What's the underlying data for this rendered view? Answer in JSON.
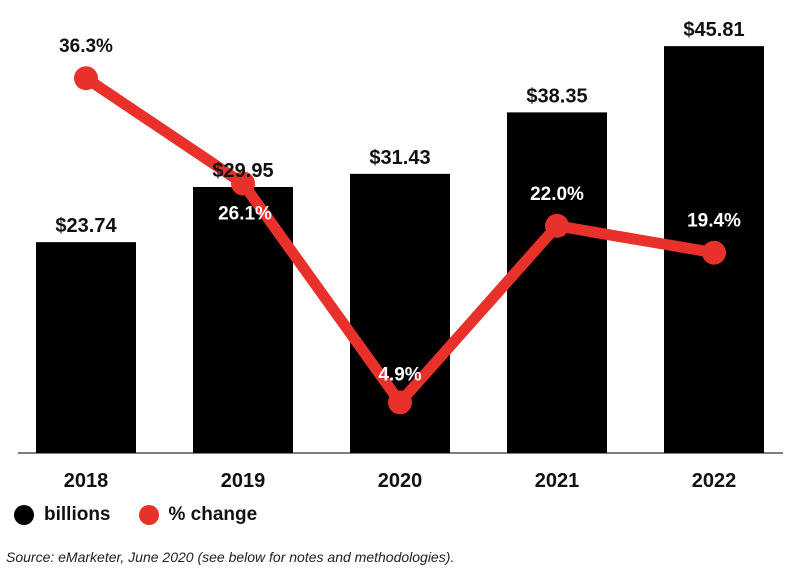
{
  "chart_data": {
    "type": "bar",
    "categories": [
      "2018",
      "2019",
      "2020",
      "2021",
      "2022"
    ],
    "series": [
      {
        "name": "billions",
        "type": "bar",
        "values": [
          23.74,
          29.95,
          31.43,
          38.35,
          45.81
        ],
        "labels": [
          "$23.74",
          "$29.95",
          "$31.43",
          "$38.35",
          "$45.81"
        ],
        "color": "#000000"
      },
      {
        "name": "% change",
        "type": "line",
        "values": [
          36.3,
          26.1,
          4.9,
          22.0,
          19.4
        ],
        "labels": [
          "36.3%",
          "26.1%",
          "4.9%",
          "22.0%",
          "19.4%"
        ],
        "color": "#e8312a"
      }
    ],
    "bar_ylim": [
      0,
      46.5
    ],
    "line_ylim": [
      0,
      40
    ],
    "title": "",
    "xlabel": "",
    "ylabel": ""
  },
  "legend": {
    "items": [
      {
        "label": "billions",
        "color": "#000000"
      },
      {
        "label": "% change",
        "color": "#e8312a"
      }
    ]
  },
  "source": "Source: eMarketer, June 2020 (see below for notes and methodologies)."
}
